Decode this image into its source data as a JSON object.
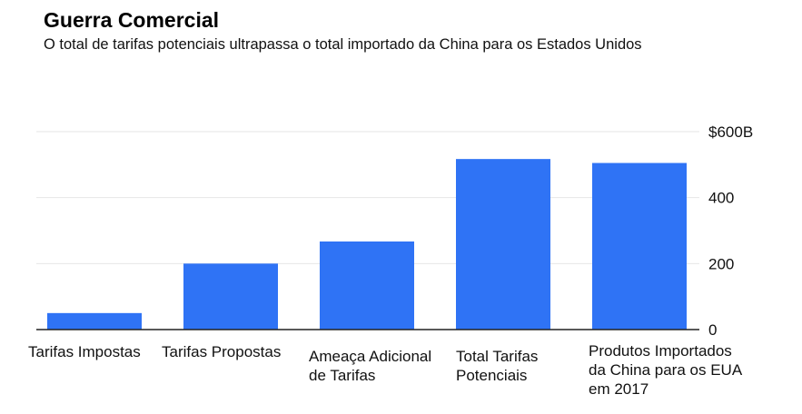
{
  "title": "Guerra Comercial",
  "subtitle": "O total de tarifas potenciais ultrapassa o total importado da China para os Estados Unidos",
  "chart_data": {
    "type": "bar",
    "title": "Guerra Comercial",
    "subtitle": "O total de tarifas potenciais ultrapassa o total importado da China para os Estados Unidos",
    "categories": [
      [
        "Tarifas Impostas"
      ],
      [
        "Tarifas Propostas"
      ],
      [
        "Ameaça Adicional",
        "de Tarifas"
      ],
      [
        "Total Tarifas",
        "Potenciais"
      ],
      [
        "Produtos Importados",
        "da China para os EUA",
        "em 2017"
      ]
    ],
    "values": [
      50,
      200,
      267,
      517,
      505
    ],
    "ylim": [
      0,
      600
    ],
    "yticks": [
      0,
      200,
      400,
      600
    ],
    "ytick_labels": [
      "0",
      "200",
      "400",
      "$600B"
    ],
    "y_axis_side": "right",
    "grid": true,
    "bar_color": "#2f73f5",
    "grid_color": "#e6e6e6"
  }
}
